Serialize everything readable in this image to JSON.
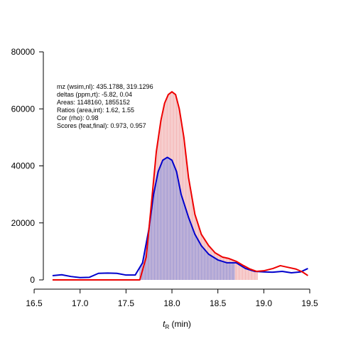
{
  "chart_data": {
    "type": "line",
    "title": "",
    "xlabel": "t",
    "xlabel_sub": "R",
    "xlabel_unit": " (min)",
    "ylabel": "",
    "xlim": [
      16.6,
      19.5
    ],
    "ylim": [
      0,
      80000
    ],
    "grid": false,
    "x_ticks": [
      16.5,
      17.0,
      17.5,
      18.0,
      18.5,
      19.0,
      19.5
    ],
    "x_tick_labels": [
      "16.5",
      "17.0",
      "17.5",
      "18.0",
      "18.5",
      "19.0",
      "19.5"
    ],
    "y_ticks": [
      0,
      20000,
      40000,
      60000,
      80000
    ],
    "y_tick_labels": [
      "0",
      "20000",
      "40000",
      "60000",
      "80000"
    ],
    "annotation_lines": [
      "mz (wsim,nl): 435.1788, 319.1296",
      "deltas (ppm,rt): -5.82, 0.04",
      "Areas: 1148160, 1855152",
      "Ratios (area,int): 1.62, 1.55",
      "Cor (rho): 0.98",
      "Scores (feat,final): 0.973, 0.957"
    ],
    "series": [
      {
        "color": "#ee0000",
        "fill_color": "#f2b0b0",
        "fill_range": [
          17.65,
          18.93
        ],
        "x": [
          16.7,
          17.0,
          17.3,
          17.5,
          17.65,
          17.72,
          17.78,
          17.83,
          17.88,
          17.92,
          17.96,
          18.0,
          18.04,
          18.08,
          18.13,
          18.18,
          18.25,
          18.32,
          18.4,
          18.47,
          18.55,
          18.62,
          18.7,
          18.78,
          18.85,
          18.92,
          19.0,
          19.1,
          19.18,
          19.25,
          19.35,
          19.42,
          19.48
        ],
        "y": [
          0,
          0,
          0,
          0,
          0,
          8000,
          28000,
          45000,
          56000,
          62000,
          65000,
          66000,
          65000,
          60000,
          50000,
          36000,
          23000,
          16000,
          12000,
          9500,
          8000,
          7500,
          6500,
          5000,
          3800,
          3000,
          3200,
          4000,
          5000,
          4500,
          3800,
          2800,
          1500
        ]
      },
      {
        "color": "#0000cc",
        "fill_color": "#9a9ad8",
        "fill_range": [
          17.65,
          18.68
        ],
        "x": [
          16.7,
          16.8,
          16.9,
          17.0,
          17.1,
          17.2,
          17.3,
          17.4,
          17.5,
          17.6,
          17.68,
          17.75,
          17.8,
          17.85,
          17.9,
          17.95,
          18.0,
          18.05,
          18.1,
          18.18,
          18.25,
          18.32,
          18.4,
          18.5,
          18.6,
          18.7,
          18.8,
          18.9,
          19.0,
          19.1,
          19.2,
          19.3,
          19.4,
          19.48
        ],
        "y": [
          1500,
          1800,
          1200,
          800,
          900,
          2300,
          2400,
          2300,
          1700,
          1700,
          6000,
          18000,
          30000,
          38000,
          42000,
          43000,
          42000,
          38000,
          30000,
          22000,
          16000,
          12000,
          9000,
          7000,
          6000,
          6000,
          4000,
          3000,
          2800,
          2700,
          3000,
          2500,
          2800,
          4000
        ]
      }
    ]
  }
}
